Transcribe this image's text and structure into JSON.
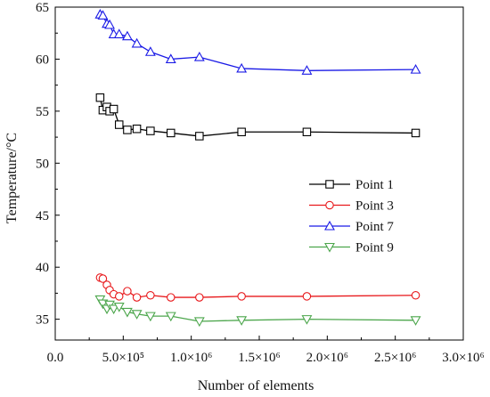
{
  "chart_data": {
    "type": "line",
    "title": "",
    "xlabel": "Number of elements",
    "ylabel": "Temperature/°C",
    "xlim": [
      0,
      3000000
    ],
    "ylim": [
      33,
      65
    ],
    "grid": false,
    "legend_position": "right",
    "x_ticks": [
      {
        "value": 0,
        "label": "0.0"
      },
      {
        "value": 500000,
        "label": "5.0×10⁵"
      },
      {
        "value": 1000000,
        "label": "1.0×10⁶"
      },
      {
        "value": 1500000,
        "label": "1.5×10⁶"
      },
      {
        "value": 2000000,
        "label": "2.0×10⁶"
      },
      {
        "value": 2500000,
        "label": "2.5×10⁶"
      },
      {
        "value": 3000000,
        "label": "3.0×10⁶"
      }
    ],
    "y_ticks": [
      {
        "value": 35,
        "label": "35"
      },
      {
        "value": 40,
        "label": "40"
      },
      {
        "value": 45,
        "label": "45"
      },
      {
        "value": 50,
        "label": "50"
      },
      {
        "value": 55,
        "label": "55"
      },
      {
        "value": 60,
        "label": "60"
      },
      {
        "value": 65,
        "label": "65"
      }
    ],
    "x": [
      330000,
      350000,
      380000,
      400000,
      430000,
      470000,
      530000,
      600000,
      700000,
      850000,
      1060000,
      1370000,
      1850000,
      2650000
    ],
    "series": [
      {
        "name": "Point 1",
        "color": "#000000",
        "marker": "square",
        "values": [
          56.3,
          55.1,
          55.4,
          55.0,
          55.2,
          53.7,
          53.2,
          53.3,
          53.1,
          52.9,
          52.6,
          53.0,
          53.0,
          52.9
        ]
      },
      {
        "name": "Point 3",
        "color": "#e8191c",
        "marker": "circle",
        "values": [
          39.0,
          38.9,
          38.3,
          37.8,
          37.4,
          37.2,
          37.7,
          37.1,
          37.3,
          37.1,
          37.1,
          37.2,
          37.2,
          37.3
        ]
      },
      {
        "name": "Point 7",
        "color": "#1a1ae6",
        "marker": "triangle-up",
        "values": [
          64.3,
          64.2,
          63.4,
          63.3,
          62.4,
          62.4,
          62.2,
          61.5,
          60.7,
          60.0,
          60.2,
          59.1,
          58.9,
          59.0
        ]
      },
      {
        "name": "Point 9",
        "color": "#4ca64c",
        "marker": "triangle-down",
        "values": [
          36.9,
          36.5,
          36.0,
          36.4,
          36.0,
          36.2,
          35.7,
          35.5,
          35.3,
          35.3,
          34.8,
          34.9,
          35.0,
          34.9
        ]
      }
    ]
  }
}
